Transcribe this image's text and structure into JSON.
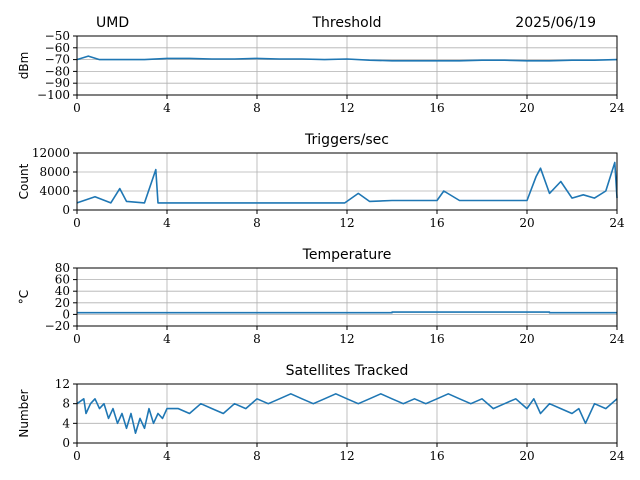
{
  "header": {
    "site": "UMD",
    "date": "2025/06/19"
  },
  "colors": {
    "series": "#1f77b4",
    "grid": "#b0b0b0",
    "axis": "#000000"
  },
  "chart_data": [
    {
      "type": "line",
      "title": "Threshold",
      "xlabel": "",
      "ylabel": "dBm",
      "xlim": [
        0,
        24
      ],
      "ylim": [
        -100,
        -50
      ],
      "xticks": [
        "0",
        "4",
        "8",
        "12",
        "16",
        "20",
        "24"
      ],
      "yticks": [
        "−100",
        "−90",
        "−80",
        "−70",
        "−60",
        "−50"
      ],
      "grid": true,
      "series": [
        {
          "x": [
            0,
            0.5,
            1,
            2,
            3,
            4,
            5,
            6,
            7,
            8,
            9,
            10,
            11,
            12,
            13,
            14,
            15,
            16,
            17,
            18,
            19,
            20,
            21,
            22,
            23,
            24
          ],
          "values": [
            -70,
            -67,
            -70,
            -70,
            -70,
            -69,
            -69,
            -69.5,
            -69.5,
            -69,
            -69.5,
            -69.5,
            -70,
            -69.5,
            -70.5,
            -71,
            -71,
            -71,
            -71,
            -70.5,
            -70.5,
            -71,
            -71,
            -70.5,
            -70.5,
            -70
          ]
        }
      ]
    },
    {
      "type": "line",
      "title": "Triggers/sec",
      "xlabel": "",
      "ylabel": "Count",
      "xlim": [
        0,
        24
      ],
      "ylim": [
        0,
        12000
      ],
      "xticks": [
        "0",
        "4",
        "8",
        "12",
        "16",
        "20",
        "24"
      ],
      "yticks": [
        "0",
        "4000",
        "8000",
        "12000"
      ],
      "grid": true,
      "series": [
        {
          "x": [
            0,
            0.8,
            1.5,
            1.9,
            2.2,
            3,
            3.5,
            3.6,
            4,
            5,
            6,
            7,
            8,
            9,
            10,
            11,
            11.9,
            12.5,
            13,
            14,
            15,
            16,
            16.3,
            17,
            18,
            19,
            20,
            20.4,
            20.6,
            21,
            21.5,
            22,
            22.5,
            23,
            23.5,
            23.9,
            24
          ],
          "values": [
            1500,
            2800,
            1500,
            4500,
            1800,
            1500,
            8500,
            1500,
            1500,
            1500,
            1500,
            1500,
            1500,
            1500,
            1500,
            1500,
            1500,
            3500,
            1800,
            2000,
            2000,
            2000,
            4000,
            2000,
            2000,
            2000,
            2000,
            7000,
            8800,
            3500,
            6000,
            2500,
            3200,
            2500,
            4000,
            10000,
            2500
          ]
        }
      ]
    },
    {
      "type": "line",
      "title": "Temperature",
      "xlabel": "",
      "ylabel": "°C",
      "xlim": [
        0,
        24
      ],
      "ylim": [
        -20,
        80
      ],
      "xticks": [
        "0",
        "4",
        "8",
        "12",
        "16",
        "20",
        "24"
      ],
      "yticks": [
        "−20",
        "0",
        "20",
        "40",
        "60",
        "80"
      ],
      "grid": true,
      "series": [
        {
          "x": [
            0,
            14,
            14,
            21,
            21,
            24
          ],
          "values": [
            3,
            3,
            4,
            4,
            3,
            3
          ]
        }
      ]
    },
    {
      "type": "line",
      "title": "Satellites Tracked",
      "xlabel": "",
      "ylabel": "Number",
      "xlim": [
        0,
        24
      ],
      "ylim": [
        0,
        12
      ],
      "xticks": [
        "0",
        "4",
        "8",
        "12",
        "16",
        "20",
        "24"
      ],
      "yticks": [
        "0",
        "4",
        "8",
        "12"
      ],
      "grid": true,
      "series": [
        {
          "x": [
            0,
            0.3,
            0.4,
            0.6,
            0.8,
            1,
            1.2,
            1.4,
            1.6,
            1.8,
            2,
            2.2,
            2.4,
            2.6,
            2.8,
            3,
            3.2,
            3.4,
            3.6,
            3.8,
            4,
            4.5,
            5,
            5.5,
            6,
            6.5,
            7,
            7.5,
            8,
            8.5,
            9,
            9.5,
            10,
            10.5,
            11,
            11.5,
            12,
            12.5,
            13,
            13.5,
            14,
            14.5,
            15,
            15.5,
            16,
            16.5,
            17,
            17.5,
            18,
            18.5,
            19,
            19.5,
            20,
            20.3,
            20.6,
            21,
            21.5,
            22,
            22.3,
            22.6,
            23,
            23.5,
            24
          ],
          "values": [
            8,
            9,
            6,
            8,
            9,
            7,
            8,
            5,
            7,
            4,
            6,
            3,
            6,
            2,
            5,
            3,
            7,
            4,
            6,
            5,
            7,
            7,
            6,
            8,
            7,
            6,
            8,
            7,
            9,
            8,
            9,
            10,
            9,
            8,
            9,
            10,
            9,
            8,
            9,
            10,
            9,
            8,
            9,
            8,
            9,
            10,
            9,
            8,
            9,
            7,
            8,
            9,
            7,
            9,
            6,
            8,
            7,
            6,
            7,
            4,
            8,
            7,
            9
          ]
        }
      ]
    }
  ]
}
